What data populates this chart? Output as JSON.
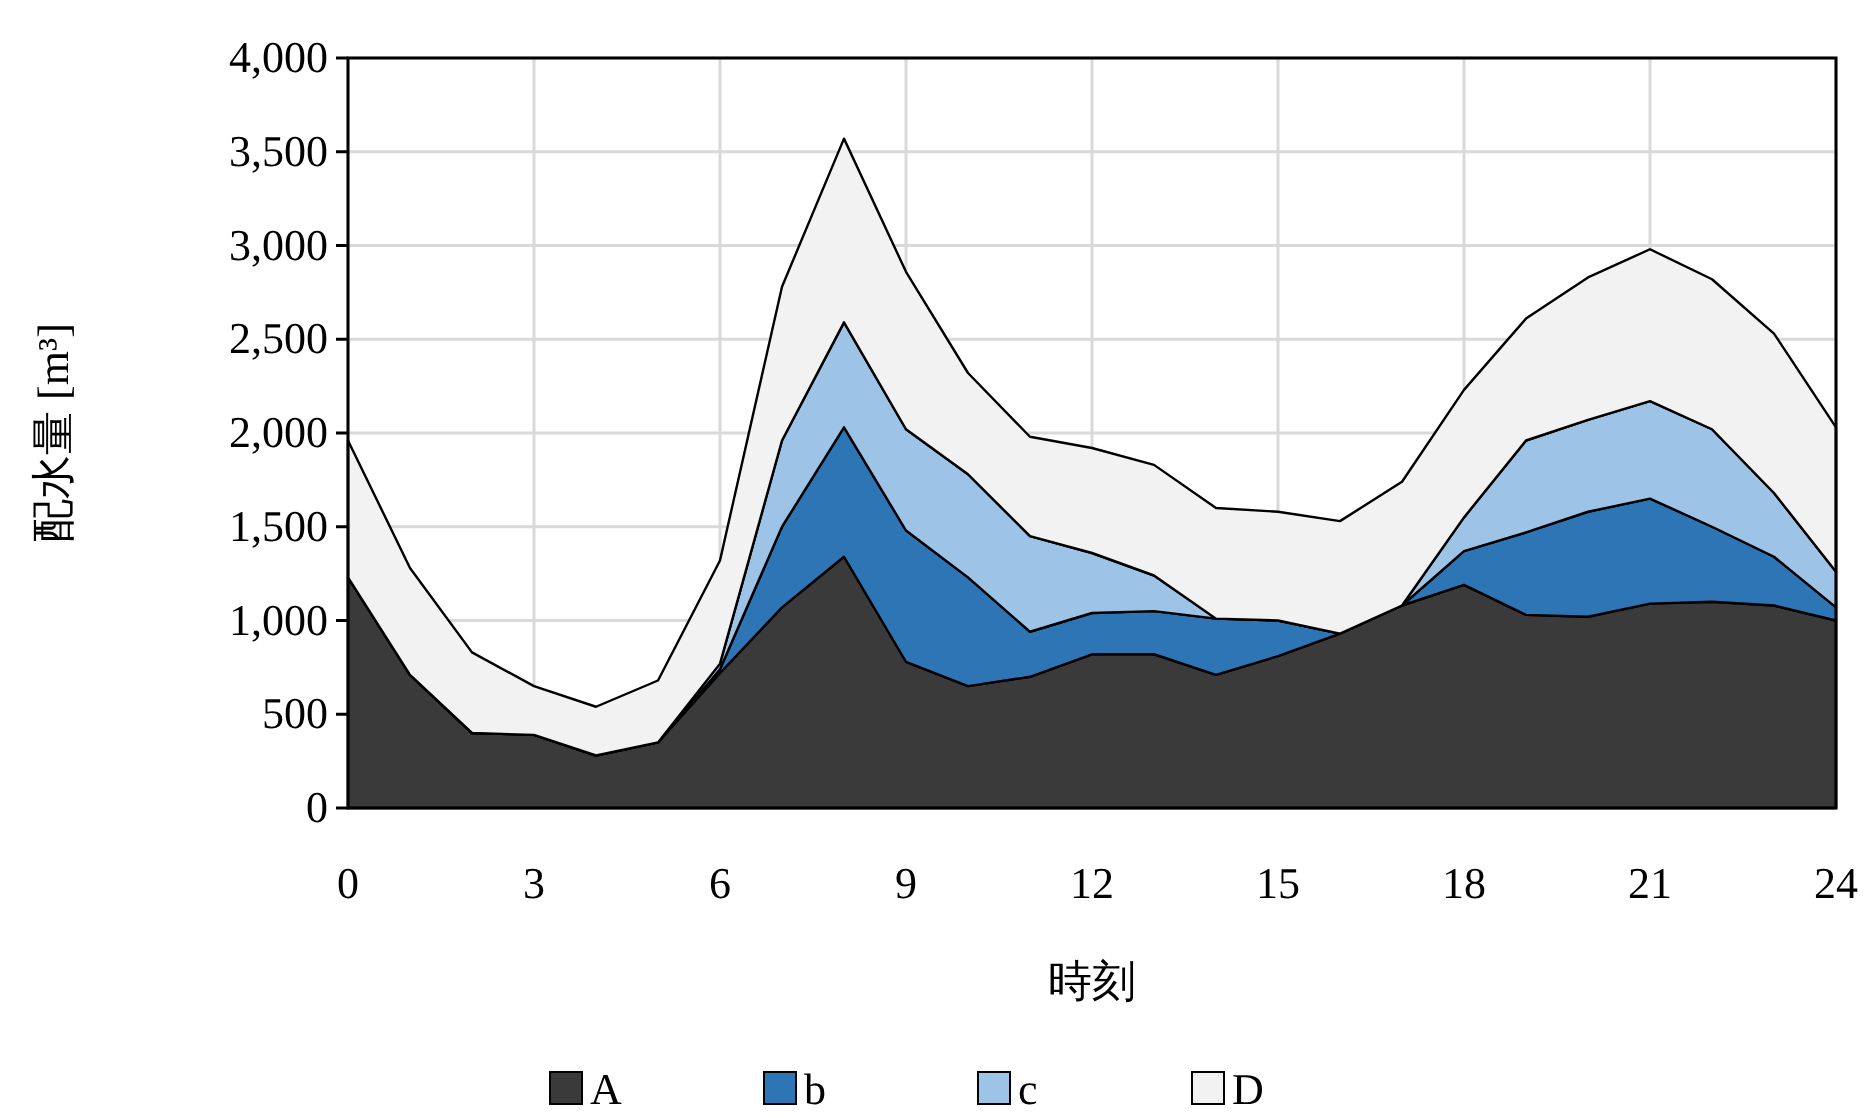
{
  "chart_data": {
    "type": "area",
    "stacked": true,
    "xlabel": "時刻",
    "ylabel": "配水量 [m³]",
    "x": [
      0,
      1,
      2,
      3,
      4,
      5,
      6,
      7,
      8,
      9,
      10,
      11,
      12,
      13,
      14,
      15,
      16,
      17,
      18,
      19,
      20,
      21,
      22,
      23,
      24
    ],
    "series": [
      {
        "name": "A",
        "color": "#3a3a3a",
        "values": [
          1230,
          710,
          400,
          390,
          280,
          350,
          720,
          1070,
          1340,
          780,
          650,
          700,
          820,
          820,
          710,
          810,
          930,
          1080,
          1190,
          1030,
          1020,
          1090,
          1100,
          1080,
          1000
        ]
      },
      {
        "name": "b",
        "color": "#2e75b6",
        "values": [
          0,
          0,
          0,
          0,
          0,
          0,
          20,
          430,
          690,
          700,
          580,
          240,
          220,
          230,
          300,
          190,
          0,
          0,
          180,
          440,
          560,
          560,
          400,
          260,
          70
        ]
      },
      {
        "name": "c",
        "color": "#9dc3e6",
        "values": [
          0,
          0,
          0,
          0,
          0,
          0,
          30,
          460,
          560,
          540,
          550,
          510,
          320,
          190,
          0,
          0,
          0,
          0,
          180,
          490,
          490,
          520,
          520,
          340,
          190
        ]
      },
      {
        "name": "D",
        "color": "#f2f2f2",
        "values": [
          730,
          570,
          430,
          260,
          260,
          330,
          550,
          820,
          980,
          840,
          540,
          530,
          560,
          590,
          590,
          580,
          600,
          660,
          680,
          650,
          760,
          810,
          800,
          850,
          770
        ]
      }
    ],
    "xlim": [
      0,
      24
    ],
    "xticks": [
      0,
      3,
      6,
      9,
      12,
      15,
      18,
      21,
      24
    ],
    "ylim": [
      0,
      4000
    ],
    "yticks": [
      0,
      500,
      {
        "value": 1000,
        "label": "1,000"
      },
      {
        "value": 1500,
        "label": "1,500"
      },
      {
        "value": 2000,
        "label": "2,000"
      },
      {
        "value": 2500,
        "label": "2,500"
      },
      {
        "value": 3000,
        "label": "3,000"
      },
      {
        "value": 3500,
        "label": "3,500"
      },
      {
        "value": 4000,
        "label": "4,000"
      }
    ],
    "grid": true,
    "legend": "bottom"
  }
}
